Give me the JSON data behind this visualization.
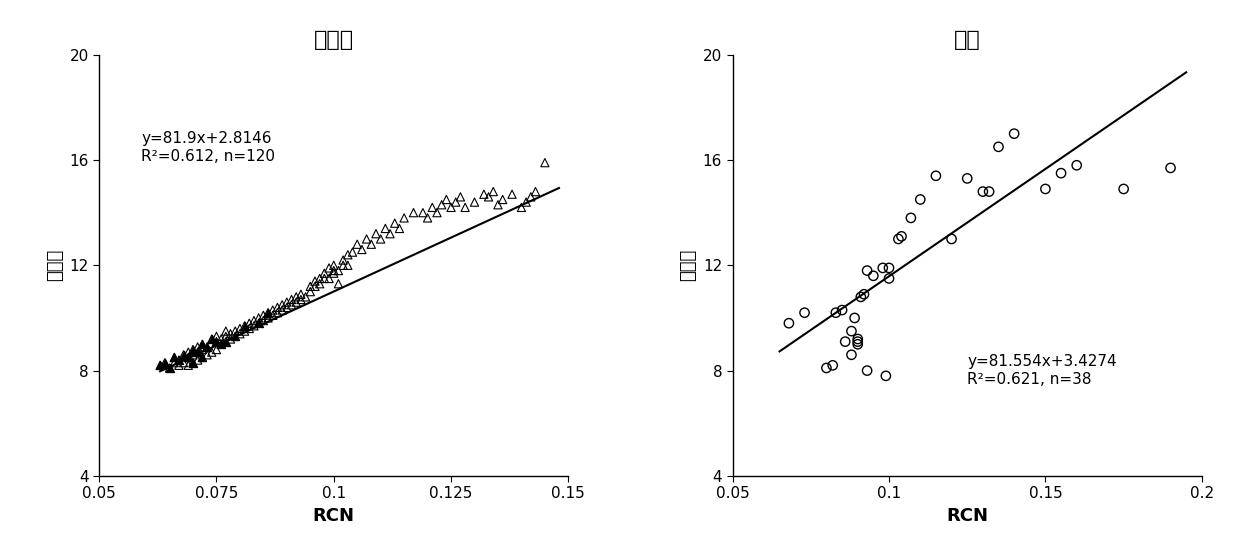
{
  "plot1": {
    "title": "冬小麦",
    "xlabel": "RCN",
    "ylabel": "碳氮比",
    "xlim": [
      0.05,
      0.15
    ],
    "ylim": [
      4,
      20
    ],
    "xticks": [
      0.05,
      0.075,
      0.1,
      0.125,
      0.15
    ],
    "yticks": [
      4,
      8,
      12,
      16,
      20
    ],
    "equation": "y=81.9x+2.8146",
    "r2_text": "R²=0.612, n=120",
    "slope": 81.9,
    "intercept": 2.8146,
    "line_x_start": 0.063,
    "line_x_end": 0.148,
    "scatter_x": [
      0.063,
      0.064,
      0.065,
      0.066,
      0.066,
      0.067,
      0.067,
      0.068,
      0.068,
      0.069,
      0.069,
      0.069,
      0.07,
      0.07,
      0.07,
      0.071,
      0.071,
      0.071,
      0.072,
      0.072,
      0.072,
      0.073,
      0.073,
      0.074,
      0.074,
      0.075,
      0.075,
      0.075,
      0.076,
      0.076,
      0.077,
      0.077,
      0.077,
      0.078,
      0.078,
      0.079,
      0.079,
      0.08,
      0.08,
      0.081,
      0.081,
      0.082,
      0.082,
      0.083,
      0.083,
      0.084,
      0.084,
      0.085,
      0.085,
      0.086,
      0.086,
      0.087,
      0.087,
      0.088,
      0.088,
      0.089,
      0.089,
      0.09,
      0.09,
      0.091,
      0.091,
      0.092,
      0.092,
      0.093,
      0.093,
      0.094,
      0.095,
      0.095,
      0.096,
      0.096,
      0.097,
      0.097,
      0.098,
      0.098,
      0.099,
      0.099,
      0.1,
      0.1,
      0.1,
      0.101,
      0.101,
      0.102,
      0.102,
      0.103,
      0.103,
      0.104,
      0.105,
      0.106,
      0.107,
      0.108,
      0.109,
      0.11,
      0.111,
      0.112,
      0.113,
      0.114,
      0.115,
      0.117,
      0.119,
      0.12,
      0.121,
      0.122,
      0.123,
      0.124,
      0.125,
      0.126,
      0.127,
      0.128,
      0.13,
      0.132,
      0.133,
      0.134,
      0.135,
      0.136,
      0.138,
      0.14,
      0.141,
      0.142,
      0.143,
      0.145
    ],
    "scatter_y": [
      8.2,
      8.3,
      8.1,
      8.3,
      8.5,
      8.2,
      8.4,
      8.3,
      8.6,
      8.2,
      8.5,
      8.7,
      8.3,
      8.6,
      8.8,
      8.4,
      8.7,
      8.9,
      8.5,
      8.8,
      9.0,
      8.6,
      8.9,
      8.7,
      9.2,
      8.8,
      9.1,
      9.3,
      9.0,
      9.2,
      9.1,
      9.3,
      9.5,
      9.2,
      9.4,
      9.3,
      9.5,
      9.4,
      9.6,
      9.5,
      9.7,
      9.6,
      9.8,
      9.7,
      9.9,
      9.8,
      10.0,
      9.9,
      10.1,
      10.0,
      10.2,
      10.1,
      10.3,
      10.2,
      10.4,
      10.3,
      10.5,
      10.4,
      10.6,
      10.5,
      10.7,
      10.6,
      10.8,
      10.7,
      10.9,
      10.8,
      11.2,
      11.0,
      11.2,
      11.4,
      11.5,
      11.3,
      11.7,
      11.5,
      11.9,
      11.5,
      11.7,
      12.0,
      11.8,
      11.3,
      11.8,
      12.2,
      12.0,
      12.4,
      12.0,
      12.5,
      12.8,
      12.6,
      13.0,
      12.8,
      13.2,
      13.0,
      13.4,
      13.2,
      13.6,
      13.4,
      13.8,
      14.0,
      14.0,
      13.8,
      14.2,
      14.0,
      14.3,
      14.5,
      14.2,
      14.4,
      14.6,
      14.2,
      14.4,
      14.7,
      14.6,
      14.8,
      14.3,
      14.5,
      14.7,
      14.2,
      14.4,
      14.6,
      14.8,
      15.9
    ]
  },
  "plot2": {
    "title": "大麦",
    "xlabel": "RCN",
    "ylabel": "碳氮比",
    "xlim": [
      0.05,
      0.2
    ],
    "ylim": [
      4,
      20
    ],
    "xticks": [
      0.05,
      0.1,
      0.15,
      0.2
    ],
    "yticks": [
      4,
      8,
      12,
      16,
      20
    ],
    "equation": "y=81.554x+3.4274",
    "r2_text": "R²=0.621, n=38",
    "slope": 81.554,
    "intercept": 3.4274,
    "line_x_start": 0.065,
    "line_x_end": 0.195,
    "scatter_x": [
      0.068,
      0.073,
      0.08,
      0.082,
      0.083,
      0.085,
      0.086,
      0.088,
      0.088,
      0.089,
      0.09,
      0.09,
      0.09,
      0.091,
      0.092,
      0.093,
      0.093,
      0.095,
      0.098,
      0.099,
      0.1,
      0.1,
      0.103,
      0.104,
      0.107,
      0.11,
      0.115,
      0.12,
      0.125,
      0.13,
      0.132,
      0.135,
      0.14,
      0.15,
      0.155,
      0.16,
      0.175,
      0.19
    ],
    "scatter_y": [
      9.8,
      10.2,
      8.1,
      8.2,
      10.2,
      10.3,
      9.1,
      8.6,
      9.5,
      10.0,
      9.0,
      9.1,
      9.2,
      10.8,
      10.9,
      8.0,
      11.8,
      11.6,
      11.9,
      7.8,
      11.5,
      11.9,
      13.0,
      13.1,
      13.8,
      14.5,
      15.4,
      13.0,
      15.3,
      14.8,
      14.8,
      16.5,
      17.0,
      14.9,
      15.5,
      15.8,
      14.9,
      15.7
    ]
  },
  "bg_color": "#ffffff",
  "text_color": "#000000",
  "line_color": "#000000",
  "marker_color": "#000000",
  "fontsize_title": 16,
  "fontsize_label": 13,
  "fontsize_tick": 11,
  "fontsize_eq": 11
}
